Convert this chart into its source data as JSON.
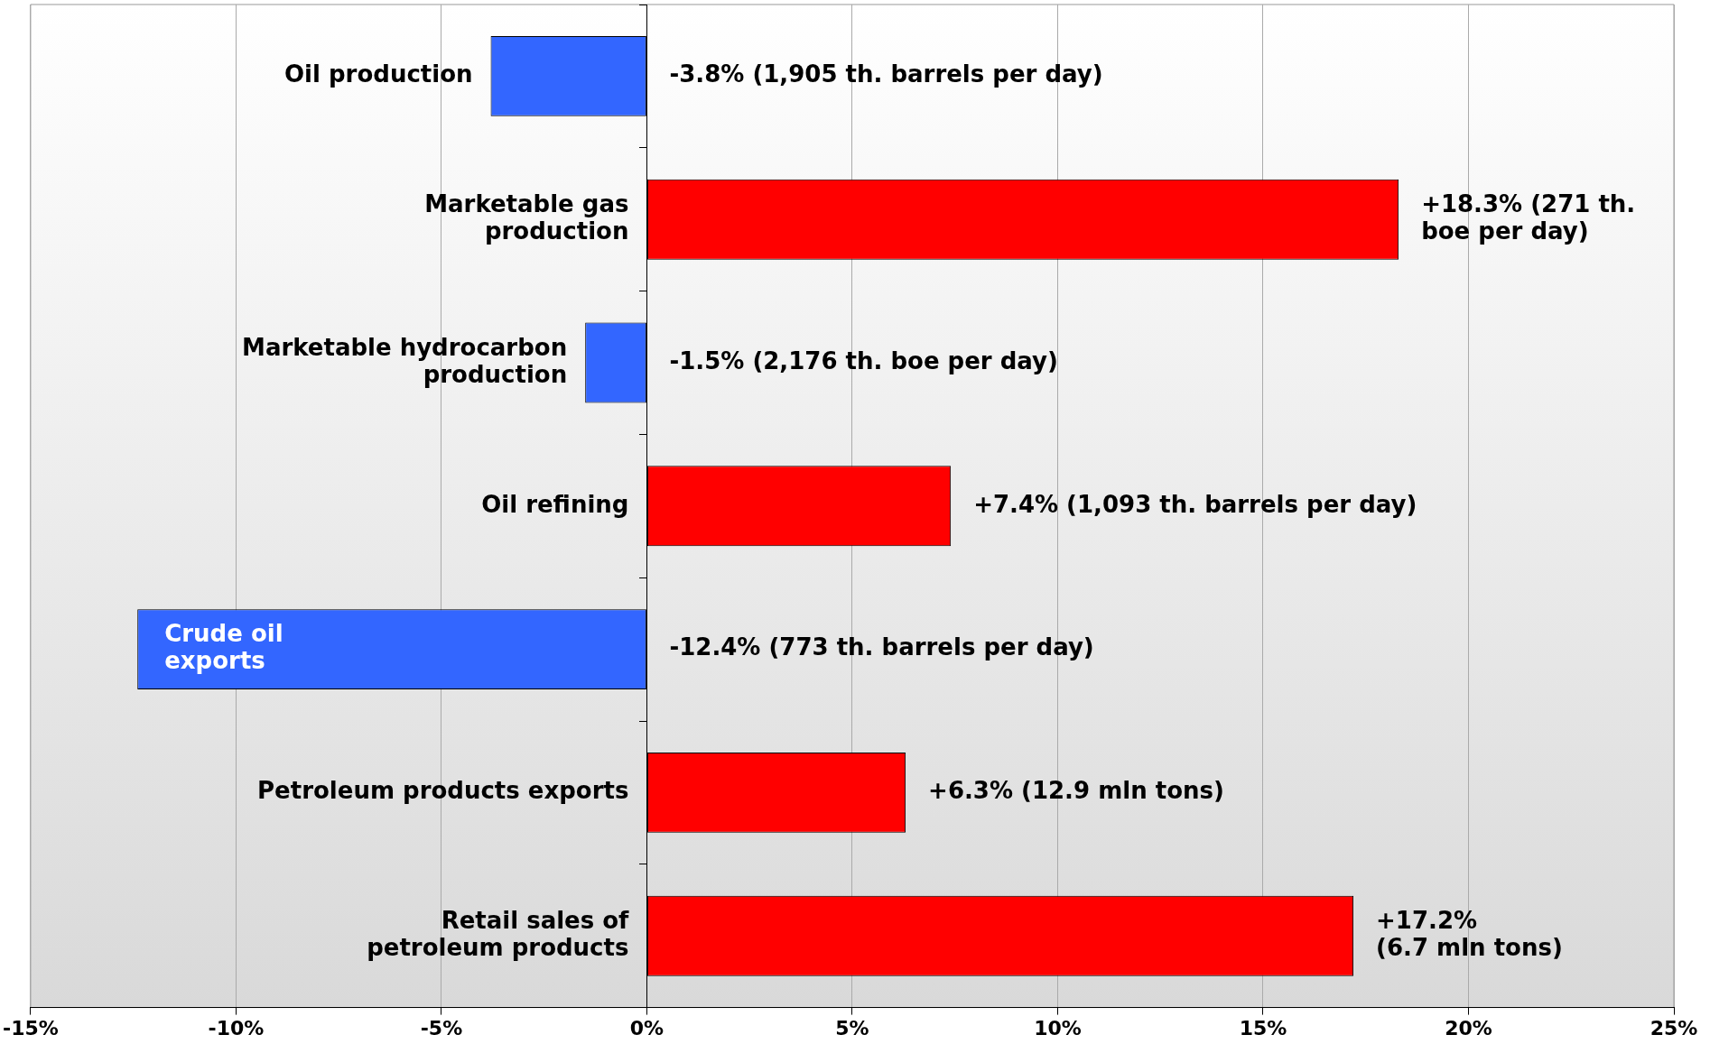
{
  "chart_data": {
    "type": "bar",
    "orientation": "horizontal",
    "categories": [
      "Oil production",
      "Marketable gas\nproduction",
      "Marketable hydrocarbon\nproduction",
      "Oil refining",
      "Crude oil\nexports",
      "Petroleum products exports",
      "Retail sales of\npetroleum products"
    ],
    "values": [
      -3.8,
      18.3,
      -1.5,
      7.4,
      -12.4,
      6.3,
      17.2
    ],
    "colors": [
      "#3366ff",
      "#ff0000",
      "#3366ff",
      "#ff0000",
      "#3366ff",
      "#ff0000",
      "#ff0000"
    ],
    "value_labels": [
      "-3.8% (1,905 th. barrels per day)",
      "+18.3% (271 th.\nboe per day)",
      "-1.5% (2,176 th. boe per day)",
      "+7.4% (1,093 th. barrels per day)",
      "-12.4% (773 th. barrels per day)",
      "+6.3% (12.9 mln tons)",
      "+17.2%\n(6.7 mln tons)"
    ],
    "xlim": [
      -15,
      25
    ],
    "xticks": [
      {
        "value": -15,
        "label": "-15%"
      },
      {
        "value": -10,
        "label": "-10%"
      },
      {
        "value": -5,
        "label": "-5%"
      },
      {
        "value": 0,
        "label": "0%"
      },
      {
        "value": 5,
        "label": "5%"
      },
      {
        "value": 10,
        "label": "10%"
      },
      {
        "value": 15,
        "label": "15%"
      },
      {
        "value": 20,
        "label": "20%"
      },
      {
        "value": 25,
        "label": "25%"
      }
    ],
    "grid": "x",
    "legend": false
  }
}
